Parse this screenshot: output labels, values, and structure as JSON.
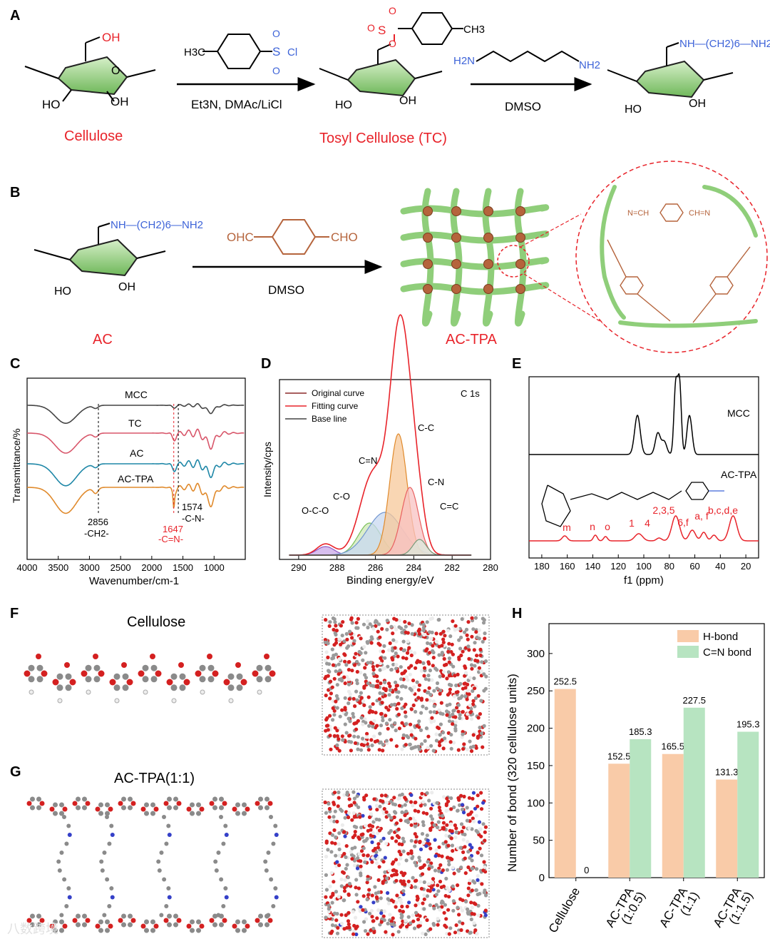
{
  "panels": {
    "A": "A",
    "B": "B",
    "C": "C",
    "D": "D",
    "E": "E",
    "F": "F",
    "G": "G",
    "H": "H"
  },
  "colors": {
    "red": "#e8232a",
    "blue": "#3d63d8",
    "green": "#8fce7a",
    "brown": "#b5643c",
    "orange": "#f7c8a6",
    "mint": "#b6e3c0"
  },
  "schemeA": {
    "cellulose_label": "Cellulose",
    "tc_label": "Tosyl Cellulose (TC)",
    "reagent1": "H3C",
    "reagent1_group": "S",
    "reagent1_cl": "Cl",
    "cond1": "Et3N, DMAc/LiCl",
    "cond2": "DMSO",
    "diamine_left": "H2N",
    "diamine_right": "NH2",
    "oh": "OH",
    "ho": "HO",
    "ch3": "CH3",
    "o": "O",
    "s": "S",
    "product_chain": "NH—(CH2)6—NH2"
  },
  "schemeB": {
    "ac_label": "AC",
    "actpa_label": "AC-TPA",
    "tpa_left": "OHC",
    "tpa_right": "CHO",
    "cond": "DMSO",
    "chain": "NH—(CH2)6—NH2",
    "imine_top": "N=CH",
    "imine_top2": "CH=N"
  },
  "panelC": {
    "ylabel": "Transmittance/%",
    "xlabel": "Wavenumber/cm-1",
    "series_names": [
      "MCC",
      "TC",
      "AC",
      "AC-TPA"
    ],
    "ann_2856": "2856",
    "ann_ch2": "-CH2-",
    "ann_1647": "1647",
    "ann_cn_double": "-C=N-",
    "ann_1574": "1574",
    "ann_cn": "-C-N-"
  },
  "panelD": {
    "ylabel": "Intensity/cps",
    "xlabel": "Binding energy/eV",
    "tag": "C 1s",
    "legend": [
      "Original curve",
      "Fitting curve",
      "Base line"
    ],
    "peaks": [
      "O-C-O",
      "C-O",
      "C=N",
      "C-C",
      "C-N",
      "C=C"
    ]
  },
  "panelE": {
    "xlabel": "f1 (ppm)",
    "mcc": "MCC",
    "actpa": "AC-TPA",
    "peak_labels": [
      "m",
      "n",
      "o",
      "1",
      "4",
      "2,3,5",
      "6,f",
      "a, f",
      "b,c,d,e"
    ]
  },
  "panelF": {
    "title": "Cellulose"
  },
  "panelG": {
    "title": "AC-TPA(1:1)"
  },
  "watermark": "八数跨境",
  "chart_data": [
    {
      "type": "line",
      "title": "",
      "xlabel": "Wavenumber/cm-1",
      "ylabel": "Transmittance/%",
      "xlim": [
        4000,
        500
      ],
      "xticks": [
        4000,
        3500,
        3000,
        2500,
        2000,
        1500,
        1000
      ],
      "series": [
        {
          "name": "MCC",
          "color": "#444444"
        },
        {
          "name": "TC",
          "color": "#d8566a"
        },
        {
          "name": "AC",
          "color": "#1e87a7"
        },
        {
          "name": "AC-TPA",
          "color": "#e08a2c"
        }
      ]
    },
    {
      "type": "area",
      "title": "",
      "xlabel": "Binding energy/eV",
      "ylabel": "Intensity/cps",
      "xlim": [
        291,
        280
      ],
      "xticks": [
        290,
        288,
        286,
        284,
        282,
        280
      ],
      "peaks": [
        {
          "label": "O-C-O",
          "x": 288.6
        },
        {
          "label": "C-O",
          "x": 286.3
        },
        {
          "label": "C=N",
          "x": 285.5
        },
        {
          "label": "C-C",
          "x": 284.8
        },
        {
          "label": "C-N",
          "x": 284.2
        },
        {
          "label": "C=C",
          "x": 283.7
        }
      ]
    },
    {
      "type": "line",
      "title": "",
      "xlabel": "f1 (ppm)",
      "xlim": [
        190,
        10
      ],
      "xticks": [
        180,
        160,
        140,
        120,
        100,
        80,
        60,
        40,
        20
      ],
      "series": [
        {
          "name": "MCC",
          "color": "#000000"
        },
        {
          "name": "AC-TPA",
          "color": "#e8232a"
        }
      ]
    },
    {
      "type": "bar",
      "title": "",
      "ylabel": "Number of bond (320 cellulose units)",
      "ylim": [
        0,
        340
      ],
      "yticks": [
        0,
        50,
        100,
        150,
        200,
        250,
        300
      ],
      "categories": [
        "Cellulose",
        "AC-TPA (1:0.5)",
        "AC-TPA (1:1)",
        "AC-TPA (1:1.5)"
      ],
      "series": [
        {
          "name": "H-bond",
          "color": "#f9cba8",
          "values": [
            252.5,
            152.5,
            165.5,
            131.3
          ]
        },
        {
          "name": "C=N bond",
          "color": "#b7e4c1",
          "values": [
            0,
            185.3,
            227.5,
            195.3
          ]
        }
      ],
      "legend": "top-right"
    }
  ]
}
